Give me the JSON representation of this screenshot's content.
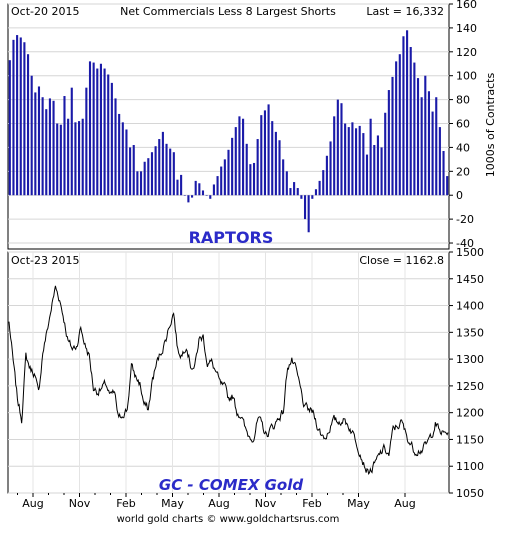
{
  "chart_data": [
    {
      "type": "bar",
      "date": "Oct-20  2015",
      "title": "Net Commercials Less 8 Largest Shorts",
      "last": "Last = 16,332",
      "annotation": "RAPTORS",
      "ylabel": "1000s of Contracts",
      "ylim": [
        -45,
        160
      ],
      "yticks": [
        -40,
        -20,
        0,
        20,
        40,
        60,
        80,
        100,
        120,
        140,
        160
      ],
      "grid": true,
      "bar_color": "#1a1aa8",
      "annotation_color": "#2b2bc8",
      "values": [
        113,
        130,
        134,
        132,
        128,
        118,
        100,
        86,
        91,
        82,
        72,
        81,
        79,
        60,
        59,
        83,
        64,
        90,
        61,
        62,
        64,
        90,
        112,
        111,
        106,
        110,
        106,
        101,
        94,
        81,
        68,
        61,
        55,
        40,
        42,
        20,
        20,
        28,
        31,
        36,
        41,
        47,
        53,
        43,
        39,
        36,
        13,
        17,
        0,
        -6,
        -2,
        12,
        10,
        4,
        0,
        -3,
        9,
        16,
        24,
        30,
        38,
        48,
        57,
        66,
        64,
        43,
        26,
        27,
        47,
        67,
        71,
        76,
        62,
        53,
        46,
        30,
        20,
        6,
        11,
        6,
        -3,
        -20,
        -31,
        -3,
        5,
        12,
        21,
        33,
        45,
        66,
        80,
        77,
        60,
        57,
        61,
        56,
        58,
        52,
        34,
        64,
        42,
        50,
        40,
        69,
        88,
        99,
        112,
        118,
        133,
        138,
        124,
        111,
        98,
        82,
        100,
        87,
        70,
        82,
        57,
        37,
        16
      ]
    },
    {
      "type": "line",
      "date": "Oct-23  2015",
      "last": "Close = 1162.8",
      "annotation": "GC - COMEX Gold",
      "ylim": [
        1050,
        1500
      ],
      "yticks": [
        1050,
        1100,
        1150,
        1200,
        1250,
        1300,
        1350,
        1400,
        1450,
        1500
      ],
      "grid": true,
      "line_color": "#000000",
      "annotation_color": "#2b2bc8",
      "x_tick_labels": [
        "Aug",
        "Nov",
        "Feb",
        "May",
        "Aug",
        "Nov",
        "Feb",
        "May",
        "Aug"
      ],
      "keypoints": [
        1370,
        1293,
        1225,
        1189,
        1305,
        1283,
        1274,
        1234,
        1313,
        1351,
        1394,
        1434,
        1412,
        1376,
        1333,
        1319,
        1325,
        1358,
        1327,
        1306,
        1246,
        1240,
        1245,
        1253,
        1230,
        1236,
        1185,
        1199,
        1206,
        1285,
        1267,
        1255,
        1215,
        1205,
        1262,
        1292,
        1313,
        1333,
        1363,
        1388,
        1315,
        1308,
        1330,
        1290,
        1284,
        1336,
        1342,
        1293,
        1293,
        1276,
        1253,
        1246,
        1227,
        1232,
        1202,
        1196,
        1167,
        1155,
        1156,
        1187,
        1175,
        1157,
        1170,
        1178,
        1193,
        1202,
        1288,
        1297,
        1278,
        1245,
        1209,
        1205,
        1200,
        1178,
        1158,
        1154,
        1173,
        1185,
        1182,
        1188,
        1181,
        1169,
        1153,
        1132,
        1107,
        1089,
        1094,
        1108,
        1124,
        1133,
        1120,
        1168,
        1175,
        1182,
        1160,
        1144,
        1130,
        1131,
        1132,
        1141,
        1157,
        1180,
        1165,
        1160,
        1162.8
      ]
    }
  ],
  "footer": "world gold charts © www.goldchartsrus.com"
}
